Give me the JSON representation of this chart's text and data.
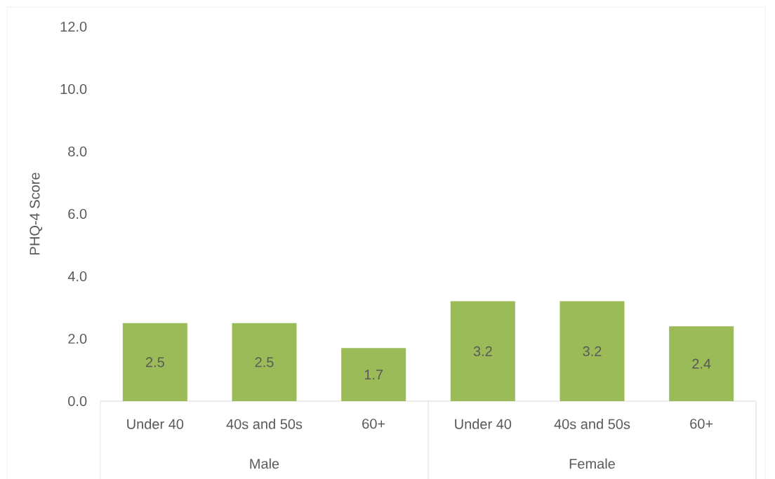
{
  "chart_data": {
    "type": "bar",
    "ylabel": "PHQ-4 Score",
    "categories": [
      "Under 40",
      "40s and 50s",
      "60+",
      "Under 40",
      "40s and 50s",
      "60+"
    ],
    "values": [
      2.5,
      2.5,
      1.7,
      3.2,
      3.2,
      2.4
    ],
    "color": "#9bbb59",
    "data_labels": true,
    "ylim": [
      0,
      12
    ],
    "yticks": [
      {
        "value": 0,
        "label": "0.0"
      },
      {
        "value": 2,
        "label": "2.0"
      },
      {
        "value": 4,
        "label": "4.0"
      },
      {
        "value": 6,
        "label": "6.0"
      },
      {
        "value": 8,
        "label": "8.0"
      },
      {
        "value": 10,
        "label": "10.0"
      },
      {
        "value": 12,
        "label": "12.0"
      }
    ],
    "annotations": [
      "Male",
      "Female"
    ],
    "grid": false
  }
}
